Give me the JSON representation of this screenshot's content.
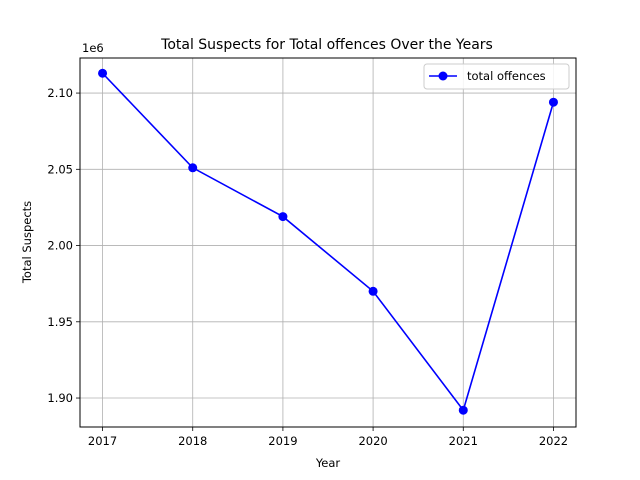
{
  "chart_data": {
    "type": "line",
    "title": "Total Suspects for Total offences Over the Years",
    "xlabel": "Year",
    "ylabel": "Total Suspects",
    "offset_label": "1e6",
    "x": [
      2017,
      2018,
      2019,
      2020,
      2021,
      2022
    ],
    "x_tick_labels": [
      "2017",
      "2018",
      "2019",
      "2020",
      "2021",
      "2022"
    ],
    "y_ticks": [
      1.9,
      1.95,
      2.0,
      2.05,
      2.1
    ],
    "y_tick_labels": [
      "1.90",
      "1.95",
      "2.00",
      "2.05",
      "2.10"
    ],
    "xlim": [
      2016.75,
      2022.25
    ],
    "ylim": [
      1.881,
      2.123
    ],
    "grid": true,
    "legend_position": "top-right",
    "series": [
      {
        "name": "total offences",
        "color": "#0000ff",
        "marker": "circle",
        "values": [
          2.113,
          2.051,
          2.019,
          1.97,
          1.892,
          2.094
        ]
      }
    ]
  }
}
